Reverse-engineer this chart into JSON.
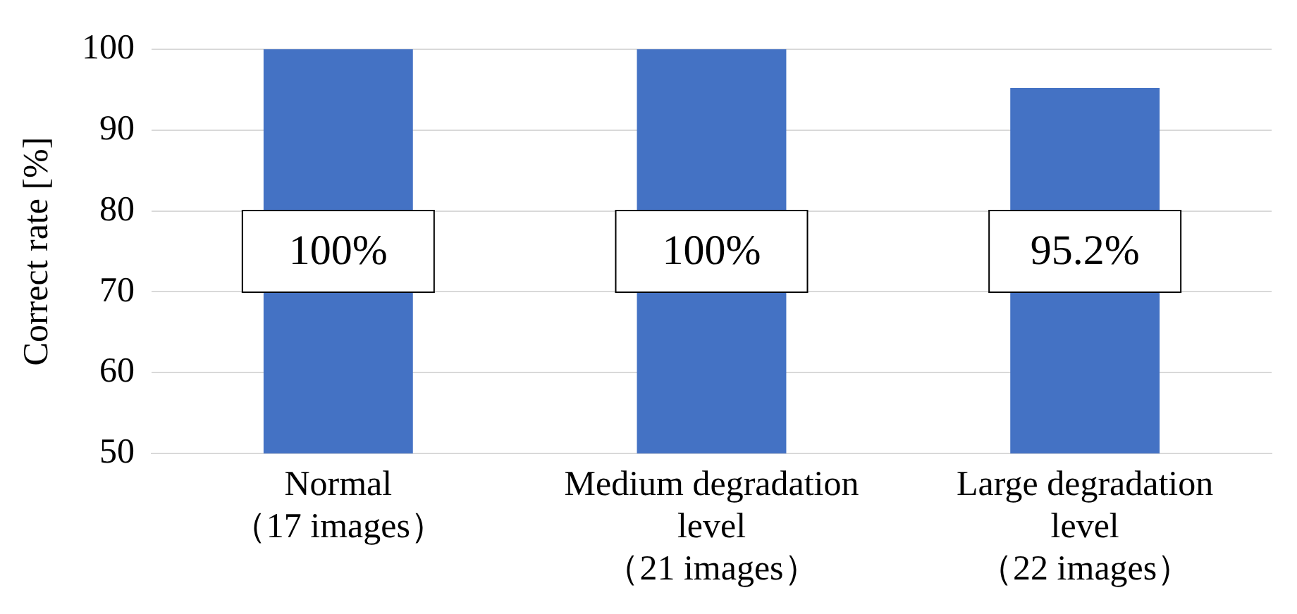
{
  "chart_data": {
    "type": "bar",
    "ylabel": "Correct rate [%]",
    "categories": [
      "Normal\n（17 images）",
      "Medium degradation\nlevel\n（21 images）",
      "Large degradation\nlevel\n（22 images）"
    ],
    "values": [
      100,
      100,
      95.2
    ],
    "value_labels": [
      "100%",
      "100%",
      "95.2%"
    ],
    "color": "#4472c4",
    "ylim": [
      50,
      100
    ],
    "yticks": [
      50,
      60,
      70,
      80,
      90,
      100
    ],
    "grid": "y",
    "legend": false
  }
}
